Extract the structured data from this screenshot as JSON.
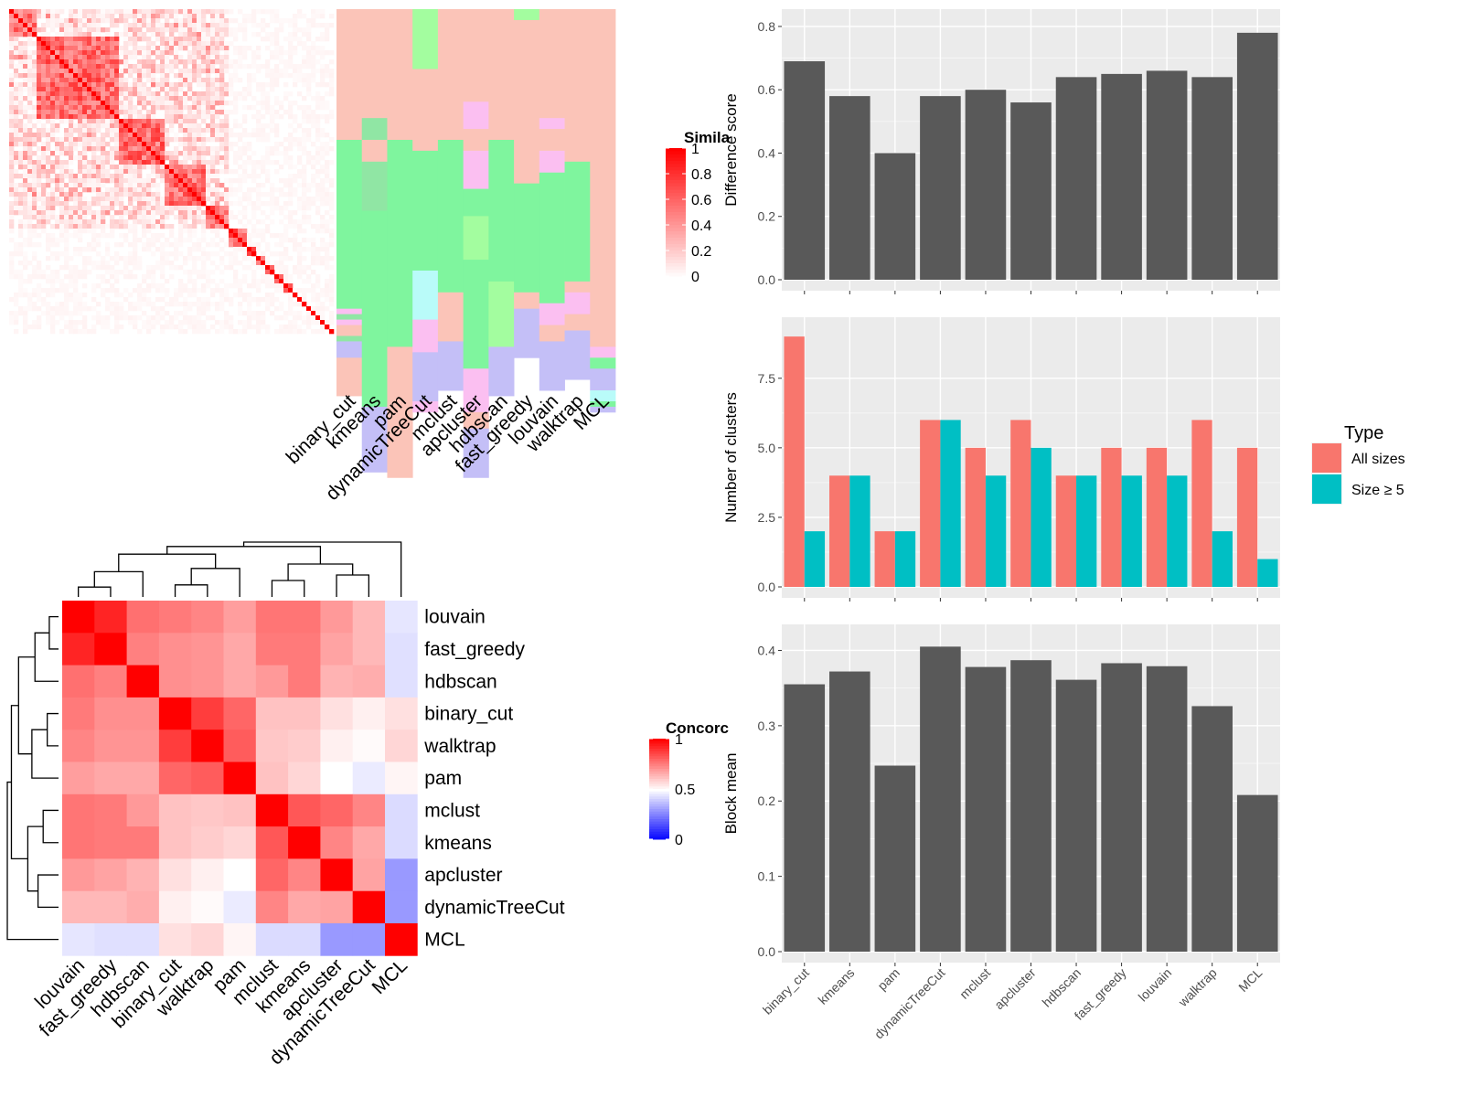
{
  "chart_data": [
    {
      "type": "heatmap",
      "id": "cell_similarity",
      "legend_title": "Simila",
      "legend_ticks": [
        "1",
        "0.8",
        "0.6",
        "0.4",
        "0.2",
        "0"
      ],
      "legend_values": [
        1,
        0.8,
        0.6,
        0.4,
        0.2,
        0
      ],
      "colors": {
        "low": "#ffffff",
        "high": "#ff0000"
      },
      "n_cells": 71,
      "cluster_sizes": [
        6,
        18,
        10,
        9,
        5,
        4,
        2,
        2,
        2,
        2,
        2,
        1,
        1,
        1,
        1,
        1,
        1,
        1,
        1,
        1
      ]
    },
    {
      "type": "heatmap",
      "id": "cluster_assignments",
      "columns": [
        "binary_cut",
        "kmeans",
        "pam",
        "dynamicTreeCut",
        "mclust",
        "apcluster",
        "hdbscan",
        "fast_greedy",
        "louvain",
        "walktrap",
        "MCL"
      ],
      "cluster_colors": {
        "1": "#fbc4b8",
        "2": "#7ff59e",
        "3": "#c4bff7",
        "4": "#fbbff1",
        "5": "#a3fd9f",
        "6": "#b9fbf9",
        "7": "#90e6a4"
      }
    },
    {
      "type": "heatmap",
      "id": "concordance",
      "legend_title": "Concorc",
      "legend_ticks": [
        "1",
        "0.5",
        "0"
      ],
      "legend_values": [
        1,
        0.5,
        0
      ],
      "colors": {
        "low": "#0000ff",
        "mid": "#ffffff",
        "high": "#ff0000"
      },
      "labels": [
        "louvain",
        "fast_greedy",
        "hdbscan",
        "binary_cut",
        "walktrap",
        "pam",
        "mclust",
        "kmeans",
        "apcluster",
        "dynamicTreeCut",
        "MCL"
      ],
      "matrix": [
        [
          1.0,
          0.93,
          0.78,
          0.76,
          0.74,
          0.69,
          0.77,
          0.77,
          0.7,
          0.64,
          0.45
        ],
        [
          0.93,
          1.0,
          0.75,
          0.72,
          0.71,
          0.67,
          0.76,
          0.76,
          0.68,
          0.64,
          0.44
        ],
        [
          0.78,
          0.75,
          1.0,
          0.72,
          0.71,
          0.67,
          0.7,
          0.76,
          0.65,
          0.66,
          0.44
        ],
        [
          0.76,
          0.72,
          0.72,
          1.0,
          0.88,
          0.8,
          0.62,
          0.62,
          0.56,
          0.53,
          0.56
        ],
        [
          0.74,
          0.71,
          0.71,
          0.88,
          1.0,
          0.82,
          0.61,
          0.6,
          0.53,
          0.51,
          0.58
        ],
        [
          0.69,
          0.67,
          0.67,
          0.8,
          0.82,
          1.0,
          0.62,
          0.58,
          0.5,
          0.46,
          0.52
        ],
        [
          0.77,
          0.76,
          0.7,
          0.62,
          0.61,
          0.62,
          1.0,
          0.83,
          0.8,
          0.74,
          0.43
        ],
        [
          0.77,
          0.76,
          0.76,
          0.62,
          0.6,
          0.58,
          0.83,
          1.0,
          0.74,
          0.67,
          0.43
        ],
        [
          0.7,
          0.68,
          0.65,
          0.56,
          0.53,
          0.5,
          0.8,
          0.74,
          1.0,
          0.68,
          0.3
        ],
        [
          0.64,
          0.64,
          0.66,
          0.53,
          0.51,
          0.46,
          0.74,
          0.67,
          0.68,
          1.0,
          0.3
        ],
        [
          0.45,
          0.44,
          0.44,
          0.56,
          0.58,
          0.52,
          0.43,
          0.43,
          0.3,
          0.3,
          1.0
        ]
      ]
    },
    {
      "type": "bar",
      "id": "difference_score",
      "categories": [
        "binary_cut",
        "kmeans",
        "pam",
        "dynamicTreeCut",
        "mclust",
        "apcluster",
        "hdbscan",
        "fast_greedy",
        "louvain",
        "walktrap",
        "MCL"
      ],
      "values": [
        0.69,
        0.58,
        0.4,
        0.58,
        0.6,
        0.56,
        0.64,
        0.65,
        0.66,
        0.64,
        0.78
      ],
      "ylabel": "Difference score",
      "ylim": [
        0,
        0.82
      ],
      "yticks": [
        0.0,
        0.2,
        0.4,
        0.6,
        0.8
      ],
      "yticklabels": [
        "0.0",
        "0.2",
        "0.4",
        "0.6",
        "0.8"
      ],
      "color": "#595959",
      "grid": true
    },
    {
      "type": "bar",
      "id": "number_of_clusters",
      "categories": [
        "binary_cut",
        "kmeans",
        "pam",
        "dynamicTreeCut",
        "mclust",
        "apcluster",
        "hdbscan",
        "fast_greedy",
        "louvain",
        "walktrap",
        "MCL"
      ],
      "series": [
        {
          "name": "All sizes",
          "values": [
            9,
            4,
            2,
            6,
            5,
            6,
            4,
            5,
            5,
            6,
            5
          ],
          "color": "#f8766d"
        },
        {
          "name": "Size ≥ 5",
          "values": [
            2,
            4,
            2,
            6,
            4,
            5,
            4,
            4,
            4,
            2,
            1
          ],
          "color": "#00bfc4"
        }
      ],
      "ylabel": "Number of clusters",
      "ylim": [
        0,
        9.3
      ],
      "yticks": [
        0.0,
        2.5,
        5.0,
        7.5
      ],
      "yticklabels": [
        "0.0",
        "2.5",
        "5.0",
        "7.5"
      ],
      "legend_title": "Type",
      "legend_position": "right",
      "grid": true
    },
    {
      "type": "bar",
      "id": "block_mean",
      "categories": [
        "binary_cut",
        "kmeans",
        "pam",
        "dynamicTreeCut",
        "mclust",
        "apcluster",
        "hdbscan",
        "fast_greedy",
        "louvain",
        "walktrap",
        "MCL"
      ],
      "values": [
        0.355,
        0.372,
        0.247,
        0.405,
        0.378,
        0.387,
        0.361,
        0.383,
        0.379,
        0.326,
        0.208
      ],
      "ylabel": "Block mean",
      "ylim": [
        0,
        0.42
      ],
      "yticks": [
        0.0,
        0.1,
        0.2,
        0.3,
        0.4
      ],
      "yticklabels": [
        "0.0",
        "0.1",
        "0.2",
        "0.3",
        "0.4"
      ],
      "color": "#595959",
      "grid": true
    }
  ]
}
